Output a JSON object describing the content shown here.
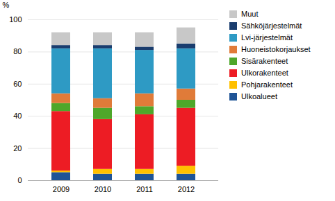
{
  "chart_data": {
    "type": "bar",
    "stacked": true,
    "categories": [
      "2009",
      "2010",
      "2011",
      "2012"
    ],
    "series": [
      {
        "name": "Muut",
        "color": "#c8c8c8",
        "values": [
          8,
          8,
          9,
          10
        ]
      },
      {
        "name": "Sähköjärjestelmät",
        "color": "#1a3d6e",
        "values": [
          2,
          2,
          2,
          3
        ]
      },
      {
        "name": "Lvi-järjestelmät",
        "color": "#2e9ac4",
        "values": [
          28,
          31,
          27,
          25
        ]
      },
      {
        "name": "Huoneistokorjaukset",
        "color": "#e07b39",
        "values": [
          6,
          6,
          8,
          7
        ]
      },
      {
        "name": "Sisärakenteet",
        "color": "#4ea72a",
        "values": [
          5,
          7,
          5,
          5
        ]
      },
      {
        "name": "Ulkorakenteet",
        "color": "#ed1c24",
        "values": [
          37,
          31,
          34,
          36
        ]
      },
      {
        "name": "Pohjarakenteet",
        "color": "#ffc000",
        "values": [
          1,
          3,
          3,
          5
        ]
      },
      {
        "name": "Ulkoalueet",
        "color": "#1f5496",
        "values": [
          5,
          4,
          4,
          4
        ]
      }
    ],
    "ylabel": "%",
    "ylim": [
      0,
      100
    ],
    "yticks": [
      0,
      20,
      40,
      60,
      80,
      100
    ],
    "grid": true,
    "legend": "right"
  }
}
